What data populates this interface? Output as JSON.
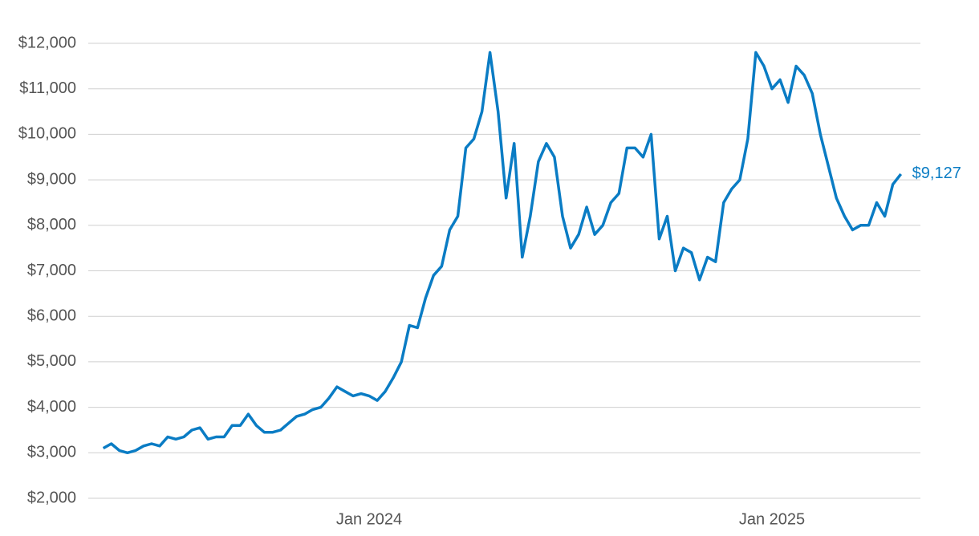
{
  "chart_data": {
    "type": "line",
    "categories": [
      null,
      null,
      null,
      null,
      null,
      null,
      null,
      null,
      null,
      null,
      null,
      null,
      null,
      null,
      null,
      null,
      null,
      null,
      null,
      null,
      null,
      null,
      null,
      null,
      null,
      null,
      null,
      null,
      null,
      null,
      null,
      null,
      null,
      "Jan 2024",
      null,
      null,
      null,
      null,
      null,
      null,
      null,
      null,
      null,
      null,
      null,
      null,
      null,
      null,
      null,
      null,
      null,
      null,
      null,
      null,
      null,
      null,
      null,
      null,
      null,
      null,
      null,
      null,
      null,
      null,
      null,
      null,
      null,
      null,
      null,
      null,
      null,
      null,
      null,
      null,
      null,
      null,
      null,
      null,
      null,
      null,
      null,
      null,
      null,
      "Jan 2025",
      null,
      null,
      null,
      null,
      null,
      null,
      null,
      null,
      null,
      null,
      null,
      null,
      null,
      null,
      null,
      null
    ],
    "values": [
      3100,
      3200,
      3050,
      3000,
      3050,
      3150,
      3200,
      3150,
      3350,
      3300,
      3350,
      3500,
      3550,
      3300,
      3350,
      3350,
      3600,
      3600,
      3850,
      3600,
      3450,
      3450,
      3500,
      3650,
      3800,
      3850,
      3950,
      4000,
      4200,
      4450,
      4350,
      4250,
      4300,
      4250,
      4150,
      4350,
      4650,
      5000,
      5800,
      5750,
      6400,
      6900,
      7100,
      7900,
      8200,
      9700,
      9900,
      10500,
      11800,
      10500,
      8600,
      9800,
      7300,
      8200,
      9400,
      9800,
      9500,
      8200,
      7500,
      7800,
      8400,
      7800,
      8000,
      8500,
      8700,
      9700,
      9700,
      9500,
      10000,
      7700,
      8200,
      7000,
      7500,
      7400,
      6800,
      7300,
      7200,
      8500,
      8800,
      9000,
      9900,
      11800,
      11500,
      11000,
      11200,
      10700,
      11500,
      11300,
      10900,
      10000,
      9300,
      8600,
      8200,
      7900,
      8000,
      8000,
      8500,
      8200,
      8900,
      9127
    ],
    "value_labels": [
      null,
      null,
      null,
      null,
      null,
      null,
      null,
      null,
      null,
      null,
      null,
      null,
      null,
      null,
      null,
      null,
      null,
      null,
      null,
      null,
      null,
      null,
      null,
      null,
      null,
      null,
      null,
      null,
      null,
      null,
      null,
      null,
      null,
      null,
      null,
      null,
      null,
      null,
      null,
      null,
      null,
      null,
      null,
      null,
      null,
      null,
      null,
      null,
      null,
      null,
      null,
      null,
      null,
      null,
      null,
      null,
      null,
      null,
      null,
      null,
      null,
      null,
      null,
      null,
      null,
      null,
      null,
      null,
      null,
      null,
      null,
      null,
      null,
      null,
      null,
      null,
      null,
      null,
      null,
      null,
      null,
      null,
      null,
      null,
      null,
      null,
      null,
      null,
      null,
      null,
      null,
      null,
      null,
      null,
      null,
      null,
      null,
      null,
      null,
      "$9,127"
    ],
    "color": "#0a7cc4",
    "ylim": [
      2000,
      12600
    ],
    "yticks": [
      {
        "value": 2000,
        "label": "$2,000"
      },
      {
        "value": 3000,
        "label": "$3,000"
      },
      {
        "value": 4000,
        "label": "$4,000"
      },
      {
        "value": 5000,
        "label": "$5,000"
      },
      {
        "value": 6000,
        "label": "$6,000"
      },
      {
        "value": 7000,
        "label": "$7,000"
      },
      {
        "value": 8000,
        "label": "$8,000"
      },
      {
        "value": 9000,
        "label": "$9,000"
      },
      {
        "value": 10000,
        "label": "$10,000"
      },
      {
        "value": 11000,
        "label": "$11,000"
      },
      {
        "value": 12000,
        "label": "$12,000"
      }
    ],
    "grid": true
  }
}
